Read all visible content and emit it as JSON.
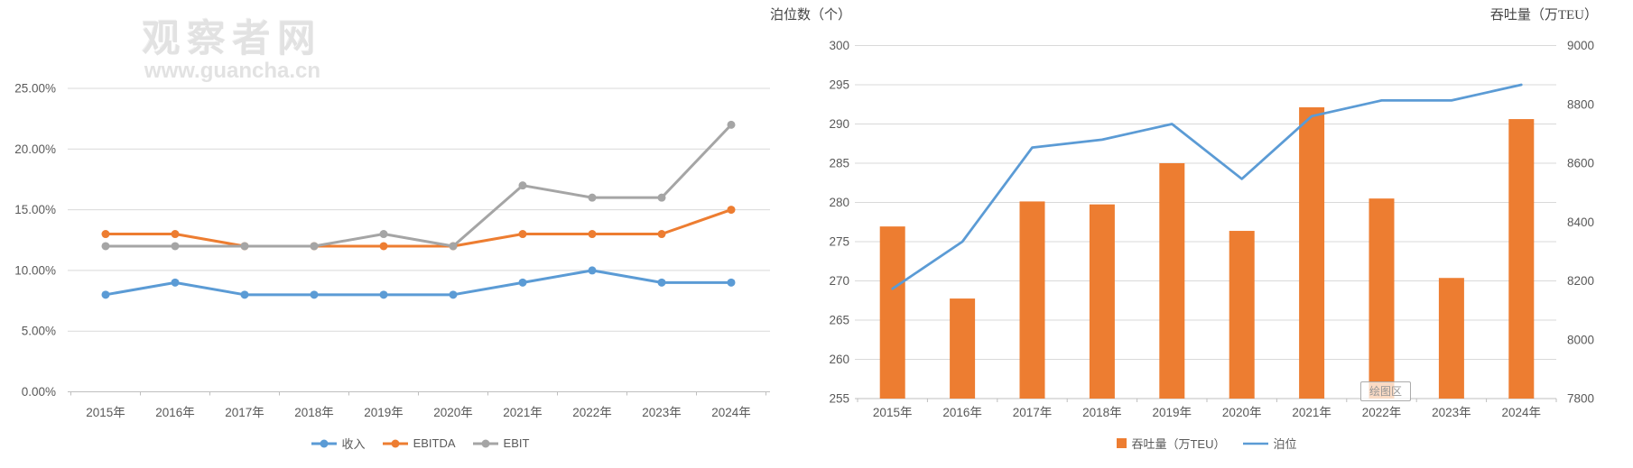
{
  "watermark": {
    "site_name": "观察者网",
    "site_url": "www.guancha.cn"
  },
  "excel_ui": {
    "plot_area_tooltip": "绘图区"
  },
  "colors": {
    "series_blue": "#5B9BD5",
    "series_orange": "#ED7D31",
    "series_gray": "#A5A5A5",
    "gridline": "#D9D9D9",
    "axis_line": "#BFBFBF",
    "tick_text": "#595959"
  },
  "chart_data": [
    {
      "type": "line",
      "title": "",
      "categories": [
        "2015年",
        "2016年",
        "2017年",
        "2018年",
        "2019年",
        "2020年",
        "2021年",
        "2022年",
        "2023年",
        "2024年"
      ],
      "series": [
        {
          "key": "revenue",
          "name": "收入",
          "color": "#5B9BD5",
          "values": [
            8,
            9,
            8,
            8,
            8,
            8,
            9,
            10,
            9,
            9
          ]
        },
        {
          "key": "ebitda",
          "name": "EBITDA",
          "color": "#ED7D31",
          "values": [
            13,
            13,
            12,
            12,
            12,
            12,
            13,
            13,
            13,
            15
          ]
        },
        {
          "key": "ebit",
          "name": "EBIT",
          "color": "#A5A5A5",
          "values": [
            12,
            12,
            12,
            12,
            13,
            12,
            17,
            16,
            16,
            22
          ]
        }
      ],
      "unit": "%",
      "ylim": [
        0,
        25
      ],
      "ystep": 5,
      "ytick_labels": [
        "0.00%",
        "5.00%",
        "10.00%",
        "15.00%",
        "20.00%",
        "25.00%"
      ],
      "grid": true,
      "legend_position": "bottom"
    },
    {
      "type": "combo",
      "title": "",
      "categories": [
        "2015年",
        "2016年",
        "2017年",
        "2018年",
        "2019年",
        "2020年",
        "2021年",
        "2022年",
        "2023年",
        "2024年"
      ],
      "left_axis": {
        "title": "泊位数（个）",
        "min": 255,
        "max": 300,
        "step": 5,
        "tick_labels": [
          "255",
          "260",
          "265",
          "270",
          "275",
          "280",
          "285",
          "290",
          "295",
          "300"
        ]
      },
      "right_axis": {
        "title": "吞吐量（万TEU）",
        "min": 7800,
        "max": 9000,
        "step": 200,
        "tick_labels": [
          "7800",
          "8000",
          "8200",
          "8400",
          "8600",
          "8800",
          "9000"
        ]
      },
      "series": [
        {
          "key": "throughput",
          "name": "吞吐量（万TEU）",
          "chart": "bar",
          "axis": "right",
          "color": "#ED7D31",
          "values": [
            8385,
            8140,
            8470,
            8460,
            8600,
            8370,
            8790,
            8480,
            8210,
            8750
          ]
        },
        {
          "key": "berths",
          "name": "泊位",
          "chart": "line",
          "axis": "left",
          "color": "#5B9BD5",
          "values": [
            269,
            275,
            287,
            288,
            290,
            283,
            291,
            293,
            293,
            295
          ]
        }
      ],
      "grid": true,
      "legend_position": "bottom"
    }
  ]
}
